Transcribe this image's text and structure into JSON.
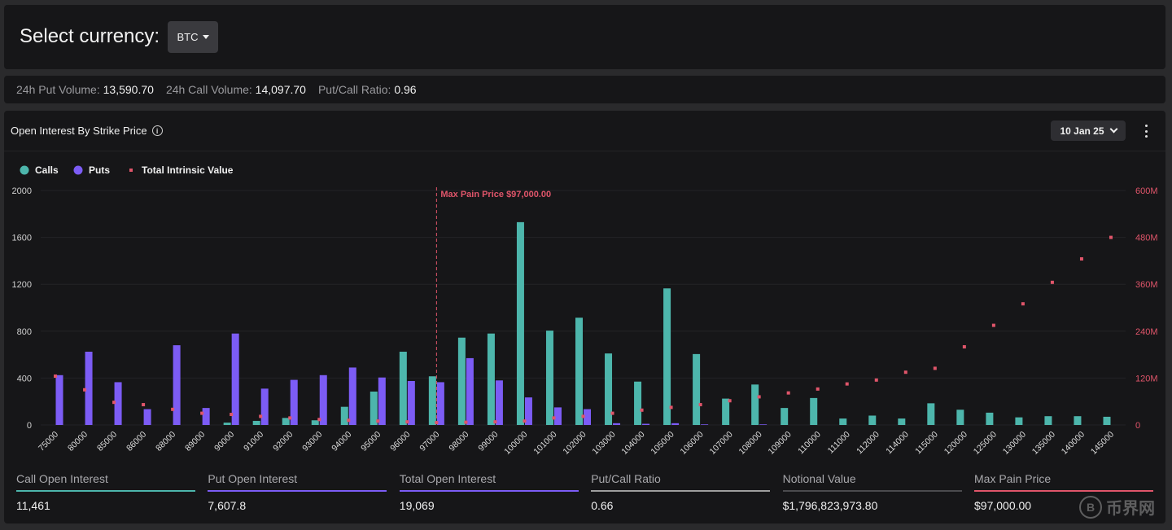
{
  "header": {
    "select_label": "Select currency:",
    "currency": "BTC"
  },
  "stats": [
    {
      "label": "24h Put Volume:",
      "value": "13,590.70"
    },
    {
      "label": "24h Call Volume:",
      "value": "14,097.70"
    },
    {
      "label": "Put/Call Ratio:",
      "value": "0.96"
    }
  ],
  "chart_panel": {
    "title": "Open Interest By Strike Price",
    "date": "10 Jan 25"
  },
  "chart_data": {
    "type": "bar",
    "title": "Open Interest By Strike Price",
    "legend_position": "top-left",
    "categories": [
      "75000",
      "80000",
      "85000",
      "86000",
      "88000",
      "89000",
      "90000",
      "91000",
      "92000",
      "93000",
      "94000",
      "95000",
      "96000",
      "97000",
      "98000",
      "99000",
      "100000",
      "101000",
      "102000",
      "103000",
      "104000",
      "105000",
      "106000",
      "107000",
      "108000",
      "109000",
      "110000",
      "111000",
      "112000",
      "114000",
      "115000",
      "120000",
      "125000",
      "130000",
      "135000",
      "140000",
      "145000"
    ],
    "series": [
      {
        "name": "Calls",
        "type": "bar",
        "axis": "left",
        "color": "#4db6ac",
        "values": [
          0,
          0,
          0,
          0,
          0,
          0,
          20,
          35,
          60,
          40,
          155,
          285,
          625,
          415,
          745,
          780,
          1730,
          805,
          915,
          610,
          370,
          1165,
          605,
          225,
          345,
          145,
          230,
          55,
          80,
          55,
          185,
          130,
          105,
          65,
          75,
          75,
          70
        ]
      },
      {
        "name": "Puts",
        "type": "bar",
        "axis": "left",
        "color": "#7c5cf5",
        "values": [
          425,
          625,
          365,
          135,
          680,
          145,
          780,
          310,
          385,
          425,
          490,
          405,
          375,
          365,
          570,
          380,
          235,
          150,
          135,
          15,
          10,
          15,
          5,
          0,
          5,
          0,
          0,
          0,
          0,
          0,
          0,
          0,
          0,
          0,
          0,
          0,
          0
        ]
      },
      {
        "name": "Total Intrinsic Value",
        "type": "scatter",
        "axis": "right",
        "color": "#e0556a",
        "values": [
          125,
          90,
          58,
          52,
          40,
          30,
          27,
          22,
          18,
          14,
          12,
          10,
          8,
          6,
          7,
          8,
          10,
          18,
          22,
          30,
          38,
          45,
          52,
          62,
          72,
          82,
          92,
          105,
          115,
          135,
          145,
          200,
          255,
          310,
          365,
          425,
          480
        ]
      }
    ],
    "left_axis": {
      "min": 0,
      "max": 2000,
      "ticks": [
        0,
        400,
        800,
        1200,
        1600,
        2000
      ]
    },
    "right_axis": {
      "min": 0,
      "max": 600,
      "ticks": [
        0,
        120,
        240,
        360,
        480,
        600
      ],
      "tick_labels": [
        "0",
        "120M",
        "240M",
        "360M",
        "480M",
        "600M"
      ]
    },
    "max_pain": {
      "category": "97000",
      "label": "Max Pain Price $97,000.00",
      "color": "#e0556a"
    }
  },
  "summary": [
    {
      "label": "Call Open Interest",
      "value": "11,461",
      "color": "#4db6ac"
    },
    {
      "label": "Put Open Interest",
      "value": "7,607.8",
      "color": "#7c5cf5"
    },
    {
      "label": "Total Open Interest",
      "value": "19,069",
      "color": "#7c5cf5"
    },
    {
      "label": "Put/Call Ratio",
      "value": "0.66",
      "color": "#9e9e9e"
    },
    {
      "label": "Notional Value",
      "value": "$1,796,823,973.80",
      "color": "#4a4a4e"
    },
    {
      "label": "Max Pain Price",
      "value": "$97,000.00",
      "color": "#e0556a"
    }
  ],
  "watermark": {
    "logo": "B",
    "text": "币界网"
  }
}
